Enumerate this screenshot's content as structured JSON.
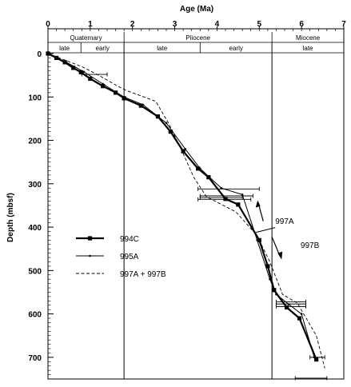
{
  "chart_data": {
    "type": "line",
    "title": "",
    "xlabel": "Age (Ma)",
    "ylabel": "Depth (mbsf)",
    "x_axis_position": "top",
    "xlim": [
      0,
      7
    ],
    "ylim": [
      0,
      750
    ],
    "y_reversed": true,
    "x_ticks": [
      0,
      1,
      2,
      3,
      4,
      5,
      6,
      7
    ],
    "y_ticks": [
      0,
      100,
      200,
      300,
      400,
      500,
      600,
      700
    ],
    "grid": false,
    "epochs": [
      {
        "name": "Quaternary",
        "start": 0,
        "end": 1.8,
        "stages": [
          {
            "name": "late",
            "start": 0,
            "end": 0.78
          },
          {
            "name": "early",
            "start": 0.78,
            "end": 1.8
          }
        ]
      },
      {
        "name": "Pliocene",
        "start": 1.8,
        "end": 5.3,
        "stages": [
          {
            "name": "late",
            "start": 1.8,
            "end": 3.6
          },
          {
            "name": "early",
            "start": 3.6,
            "end": 5.3
          }
        ]
      },
      {
        "name": "Miocene",
        "start": 5.3,
        "end": 7,
        "stages": [
          {
            "name": "late",
            "start": 5.3,
            "end": 7
          }
        ]
      }
    ],
    "boundary_lines": [
      1.8,
      5.3
    ],
    "series": [
      {
        "name": "994C",
        "style": "thick-marker",
        "x": [
          0,
          0.2,
          0.4,
          0.6,
          0.78,
          1.0,
          1.3,
          1.6,
          1.8,
          2.2,
          2.6,
          2.9,
          3.2,
          3.55,
          3.8,
          4.2,
          4.5,
          5.0,
          5.2,
          5.35,
          5.65,
          5.95,
          6.35
        ],
        "y": [
          0,
          10,
          20,
          33,
          43,
          58,
          75,
          90,
          103,
          120,
          145,
          180,
          225,
          265,
          285,
          335,
          348,
          430,
          490,
          545,
          585,
          610,
          705
        ]
      },
      {
        "name": "995A",
        "style": "thin-marker",
        "x": [
          0,
          0.4,
          0.85,
          1.3,
          1.8,
          2.25,
          2.8,
          3.25,
          3.6,
          4.1,
          4.6,
          4.95,
          5.25,
          5.4,
          5.7,
          6.0,
          6.3
        ],
        "y": [
          0,
          18,
          42,
          70,
          100,
          118,
          160,
          220,
          265,
          310,
          325,
          430,
          520,
          555,
          578,
          600,
          700
        ]
      },
      {
        "name": "997A + 997B",
        "style": "dashed",
        "x": [
          0,
          0.4,
          0.8,
          1.2,
          1.65,
          1.85,
          2.55,
          2.85,
          3.15,
          3.45,
          3.75,
          4.05,
          4.45,
          4.95,
          5.25,
          5.55,
          5.9,
          6.35,
          6.55
        ],
        "y": [
          0,
          15,
          30,
          50,
          75,
          85,
          110,
          160,
          220,
          285,
          330,
          345,
          365,
          420,
          480,
          555,
          575,
          650,
          725
        ]
      }
    ],
    "error_bars": [
      {
        "y": 48,
        "x0": 0.8,
        "x1": 1.4
      },
      {
        "y": 312,
        "x0": 3.55,
        "x1": 5.0
      },
      {
        "y": 328,
        "x0": 3.6,
        "x1": 4.85
      },
      {
        "y": 332,
        "x0": 3.6,
        "x1": 4.6
      },
      {
        "y": 336,
        "x0": 3.55,
        "x1": 4.8
      },
      {
        "y": 572,
        "x0": 5.4,
        "x1": 6.1
      },
      {
        "y": 577,
        "x0": 5.4,
        "x1": 6.1
      },
      {
        "y": 583,
        "x0": 5.4,
        "x1": 6.1
      },
      {
        "y": 700,
        "x0": 6.2,
        "x1": 6.55
      },
      {
        "y": 748,
        "x0": 5.85,
        "x1": 6.6
      }
    ],
    "annotations": [
      {
        "text": "997A",
        "x": 5.15,
        "y": 385
      },
      {
        "text": "997B",
        "x": 5.75,
        "y": 440
      }
    ],
    "legend": {
      "placement": "left-middle",
      "entries": [
        {
          "series": "994C",
          "label": "994C"
        },
        {
          "series": "995A",
          "label": "995A"
        },
        {
          "series": "997A + 997B",
          "label": "997A + 997B"
        }
      ]
    }
  }
}
